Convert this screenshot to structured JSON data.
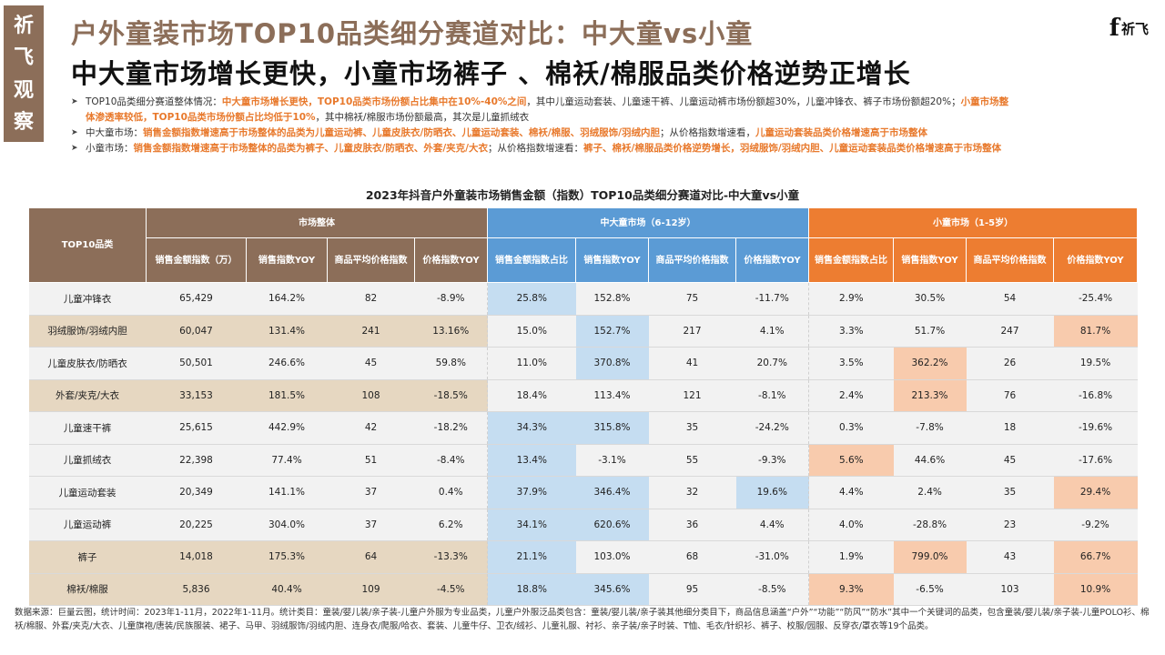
{
  "stamp": {
    "chars": [
      "祈",
      "飞",
      "观",
      "察"
    ]
  },
  "header": {
    "title": "户外童装市场TOP10品类细分赛道对比：中大童vs小童",
    "subtitle": "中大童市场增长更快，小童市场裤子 、棉袄/棉服品类价格逆势正增长"
  },
  "logo": {
    "mark": "f",
    "text": "祈飞"
  },
  "bullets": [
    {
      "segments": [
        {
          "text": "TOP10品类细分赛道整体情况：",
          "hl": false
        },
        {
          "text": "中大童市场增长更快，TOP10品类市场份额占比集中在10%-40%之间",
          "hl": true
        },
        {
          "text": "，其中儿童运动套装、儿童速干裤、儿童运动裤市场份额超30%，儿童冲锋衣、裤子市场份额超20%；",
          "hl": false
        },
        {
          "text": "小童市场整",
          "hl": true
        }
      ],
      "cont": [
        {
          "text": "体渗透率较低，TOP10品类市场份额占比均低于10%",
          "hl": true
        },
        {
          "text": "，其中棉袄/棉服市场份额最高，其次是儿童抓绒衣",
          "hl": false
        }
      ]
    },
    {
      "segments": [
        {
          "text": "中大童市场：",
          "hl": false
        },
        {
          "text": "销售金额指数增速高于市场整体的品类为儿童运动裤、儿童皮肤衣/防晒衣、儿童运动套装、棉袄/棉服、羽绒服饰/羽绒内胆",
          "hl": true
        },
        {
          "text": "；从价格指数增速看，",
          "hl": false
        },
        {
          "text": "儿童运动套装品类价格增速高于市场整体",
          "hl": true
        }
      ]
    },
    {
      "segments": [
        {
          "text": "小童市场：",
          "hl": false
        },
        {
          "text": "销售金额指数增速高于市场整体的品类为裤子、儿童皮肤衣/防晒衣、外套/夹克/大衣",
          "hl": true
        },
        {
          "text": "；从价格指数增速看：",
          "hl": false
        },
        {
          "text": "裤子、棉袄/棉服品类价格逆势增长，羽绒服饰/羽绒内胆、儿童运动套装品类价格增速高于市场整体",
          "hl": true
        }
      ]
    }
  ],
  "table": {
    "title": "2023年抖音户外童装市场销售金额（指数）TOP10品类细分赛道对比-中大童vs小童",
    "col_category": "TOP10品类",
    "groups": [
      "市场整体",
      "中大童市场（6-12岁）",
      "小童市场（1-5岁）"
    ],
    "overall_cols": [
      "销售金额指数（万）",
      "销售指数YOY",
      "商品平均价格指数",
      "价格指数YOY"
    ],
    "segment_cols": [
      "销售金额指数占比",
      "销售指数YOY",
      "商品平均价格指数",
      "价格指数YOY"
    ],
    "rows": [
      {
        "cat": "儿童冲锋衣",
        "cells": [
          "65,429",
          "164.2%",
          "82",
          "-8.9%",
          "25.8%",
          "152.8%",
          "75",
          "-11.7%",
          "2.9%",
          "30.5%",
          "54",
          "-25.4%"
        ]
      },
      {
        "cat": "羽绒服饰/羽绒内胆",
        "cells": [
          "60,047",
          "131.4%",
          "241",
          "13.16%",
          "15.0%",
          "152.7%",
          "217",
          "4.1%",
          "3.3%",
          "51.7%",
          "247",
          "81.7%"
        ]
      },
      {
        "cat": "儿童皮肤衣/防晒衣",
        "cells": [
          "50,501",
          "246.6%",
          "45",
          "59.8%",
          "11.0%",
          "370.8%",
          "41",
          "20.7%",
          "3.5%",
          "362.2%",
          "26",
          "19.5%"
        ]
      },
      {
        "cat": "外套/夹克/大衣",
        "cells": [
          "33,153",
          "181.5%",
          "108",
          "-18.5%",
          "18.4%",
          "113.4%",
          "121",
          "-8.1%",
          "2.4%",
          "213.3%",
          "76",
          "-16.8%"
        ]
      },
      {
        "cat": "儿童速干裤",
        "cells": [
          "25,615",
          "442.9%",
          "42",
          "-18.2%",
          "34.3%",
          "315.8%",
          "35",
          "-24.2%",
          "0.3%",
          "-7.8%",
          "18",
          "-19.6%"
        ]
      },
      {
        "cat": "儿童抓绒衣",
        "cells": [
          "22,398",
          "77.4%",
          "51",
          "-8.4%",
          "13.4%",
          "-3.1%",
          "55",
          "-9.3%",
          "5.6%",
          "44.6%",
          "45",
          "-17.6%"
        ]
      },
      {
        "cat": "儿童运动套装",
        "cells": [
          "20,349",
          "141.1%",
          "37",
          "0.4%",
          "37.9%",
          "346.4%",
          "32",
          "19.6%",
          "4.4%",
          "2.4%",
          "35",
          "29.4%"
        ]
      },
      {
        "cat": "儿童运动裤",
        "cells": [
          "20,225",
          "304.0%",
          "37",
          "6.2%",
          "34.1%",
          "620.6%",
          "36",
          "4.4%",
          "4.0%",
          "-28.8%",
          "23",
          "-9.2%"
        ]
      },
      {
        "cat": "裤子",
        "cells": [
          "14,018",
          "175.3%",
          "64",
          "-13.3%",
          "21.1%",
          "103.0%",
          "68",
          "-31.0%",
          "1.9%",
          "799.0%",
          "43",
          "66.7%"
        ]
      },
      {
        "cat": "棉袄/棉服",
        "cells": [
          "5,836",
          "40.4%",
          "109",
          "-4.5%",
          "18.8%",
          "345.6%",
          "95",
          "-8.5%",
          "9.3%",
          "-6.5%",
          "103",
          "10.9%"
        ]
      }
    ]
  },
  "footnote": "数据来源：巨量云图，统计时间：2023年1-11月，2022年1-11月。统计类目：童装/婴儿装/亲子装-儿童户外服为专业品类，儿童户外服泛品类包含：童装/婴儿装/亲子装其他细分类目下，商品信息涵盖“户外”“功能”“防风”“防水”其中一个关键词的品类，包含童装/婴儿装/亲子装-儿童POLO衫、棉袄/棉服、外套/夹克/大衣、儿童旗袍/唐装/民族服装、裙子、马甲、羽绒服饰/羽绒内胆、连身衣/爬服/哈衣、套装、儿童牛仔、卫衣/绒衫、儿童礼服、衬衫、亲子装/亲子时装、T恤、毛衣/针织衫、裤子、校服/园服、反穿衣/罩衣等19个品类。"
}
